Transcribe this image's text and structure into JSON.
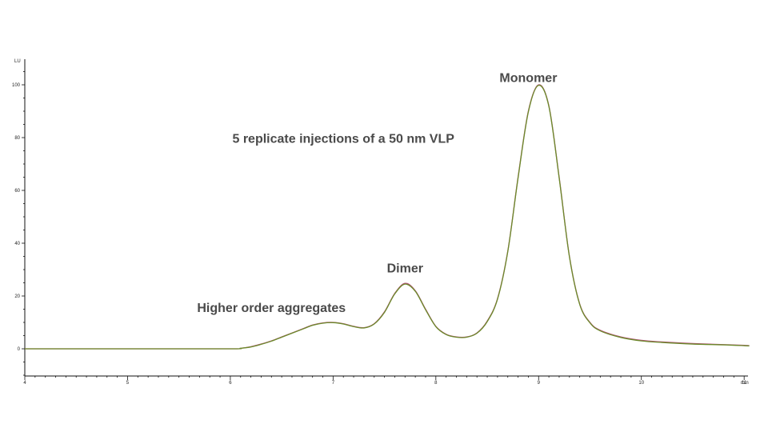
{
  "chart_data": {
    "type": "line",
    "xlabel": "min",
    "ylabel": "LU",
    "xlim": [
      4,
      11.05
    ],
    "ylim": [
      -10,
      110
    ],
    "x_ticks": [
      4,
      5,
      6,
      7,
      8,
      9,
      10,
      11
    ],
    "y_ticks": [
      0,
      20,
      40,
      60,
      80,
      100
    ],
    "grid": false,
    "annotations": [
      {
        "text": "Monomer",
        "x": 8.9,
        "y": 101
      },
      {
        "text": "5 replicate injections of a 50 nm VLP",
        "x": 7.1,
        "y": 78
      },
      {
        "text": "Dimer",
        "x": 7.7,
        "y": 29
      },
      {
        "text": "Higher order aggregates",
        "x": 6.4,
        "y": 14
      }
    ],
    "series": [
      {
        "color": "#b5527a",
        "x": [
          4.0,
          5.0,
          6.0,
          6.1,
          6.2,
          6.3,
          6.4,
          6.5,
          6.6,
          6.7,
          6.8,
          6.9,
          7.0,
          7.1,
          7.2,
          7.3,
          7.4,
          7.5,
          7.6,
          7.7,
          7.8,
          7.9,
          8.0,
          8.1,
          8.2,
          8.3,
          8.4,
          8.5,
          8.6,
          8.7,
          8.8,
          8.9,
          9.0,
          9.1,
          9.2,
          9.3,
          9.4,
          9.5,
          9.6,
          9.8,
          10.0,
          10.2,
          10.5,
          10.8,
          11.0,
          11.05
        ],
        "y": [
          0,
          0,
          0,
          0.2,
          0.8,
          1.8,
          3.0,
          4.5,
          6.0,
          7.5,
          9.0,
          9.8,
          10.0,
          9.5,
          8.5,
          8.0,
          9.5,
          14.0,
          21.0,
          24.8,
          22.0,
          15.0,
          8.5,
          5.5,
          4.5,
          4.5,
          6.0,
          10.5,
          19.0,
          37.0,
          65.0,
          90.0,
          100.0,
          92.0,
          65.0,
          35.0,
          17.0,
          10.0,
          7.0,
          4.5,
          3.2,
          2.6,
          2.0,
          1.6,
          1.3,
          1.2
        ]
      },
      {
        "color": "#6b8a2a",
        "x": [
          4.0,
          5.0,
          6.0,
          6.1,
          6.2,
          6.3,
          6.4,
          6.5,
          6.6,
          6.7,
          6.8,
          6.9,
          7.0,
          7.1,
          7.2,
          7.3,
          7.4,
          7.5,
          7.6,
          7.7,
          7.8,
          7.9,
          8.0,
          8.1,
          8.2,
          8.3,
          8.4,
          8.5,
          8.6,
          8.7,
          8.8,
          8.9,
          9.0,
          9.1,
          9.2,
          9.3,
          9.4,
          9.5,
          9.6,
          9.8,
          10.0,
          10.2,
          10.5,
          10.8,
          11.0,
          11.05
        ],
        "y": [
          0,
          0,
          0,
          0.2,
          0.7,
          1.7,
          2.9,
          4.4,
          5.9,
          7.4,
          8.9,
          9.7,
          9.9,
          9.4,
          8.4,
          7.9,
          9.4,
          13.8,
          20.8,
          24.5,
          21.8,
          14.8,
          8.4,
          5.4,
          4.4,
          4.4,
          5.9,
          10.3,
          18.8,
          36.8,
          64.7,
          89.7,
          99.8,
          91.8,
          64.7,
          34.8,
          16.8,
          9.8,
          6.8,
          4.3,
          3.0,
          2.4,
          1.8,
          1.5,
          1.2,
          1.1
        ]
      }
    ]
  }
}
